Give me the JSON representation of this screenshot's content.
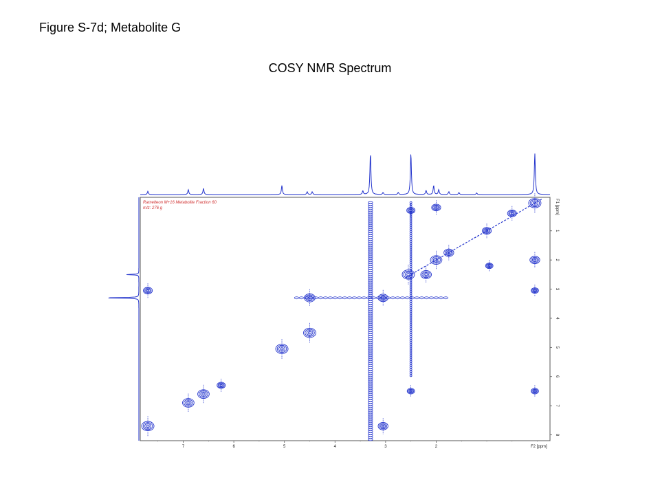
{
  "figure_label": "Figure S-7d; Metabolite G",
  "chart_data": {
    "type": "heatmap",
    "title": "COSY NMR Spectrum",
    "annotation_lines": [
      "Ramelteon M+16 Metabolite Fraction 60",
      "m/z: 276 g"
    ],
    "x_axis": {
      "label": "F2 [ppm]",
      "range": [
        7.85,
        -0.25
      ],
      "ticks": [
        7,
        6,
        5,
        4,
        3,
        2
      ]
    },
    "y_axis": {
      "label": "F1 [ppm]",
      "range": [
        -0.15,
        8.2
      ],
      "ticks": [
        1,
        2,
        3,
        4,
        5,
        6,
        7,
        8
      ]
    },
    "contour_color": "#2233cc",
    "top_projection_peaks": [
      {
        "ppm": 7.7,
        "height": 0.08
      },
      {
        "ppm": 6.9,
        "height": 0.12
      },
      {
        "ppm": 6.6,
        "height": 0.15
      },
      {
        "ppm": 5.05,
        "height": 0.22
      },
      {
        "ppm": 4.55,
        "height": 0.07
      },
      {
        "ppm": 4.45,
        "height": 0.07
      },
      {
        "ppm": 3.45,
        "height": 0.09
      },
      {
        "ppm": 3.3,
        "height": 1.0
      },
      {
        "ppm": 3.05,
        "height": 0.05
      },
      {
        "ppm": 2.75,
        "height": 0.05
      },
      {
        "ppm": 2.5,
        "height": 1.0
      },
      {
        "ppm": 2.2,
        "height": 0.1
      },
      {
        "ppm": 2.05,
        "height": 0.22
      },
      {
        "ppm": 1.95,
        "height": 0.12
      },
      {
        "ppm": 1.75,
        "height": 0.07
      },
      {
        "ppm": 1.55,
        "height": 0.05
      },
      {
        "ppm": 1.2,
        "height": 0.04
      },
      {
        "ppm": 0.05,
        "height": 1.0
      }
    ],
    "left_projection_peaks": [
      {
        "ppm": 2.5,
        "height": 0.35
      },
      {
        "ppm": 3.3,
        "height": 1.0
      }
    ],
    "cross_peaks": [
      {
        "x": 7.7,
        "y": 7.7,
        "size": 1.0
      },
      {
        "x": 7.7,
        "y": 3.05,
        "size": 0.6
      },
      {
        "x": 6.9,
        "y": 6.9,
        "size": 0.9
      },
      {
        "x": 6.6,
        "y": 6.6,
        "size": 0.9
      },
      {
        "x": 6.25,
        "y": 6.3,
        "size": 0.5
      },
      {
        "x": 5.05,
        "y": 5.05,
        "size": 1.0
      },
      {
        "x": 4.5,
        "y": 4.5,
        "size": 1.0
      },
      {
        "x": 4.5,
        "y": 3.3,
        "size": 0.8
      },
      {
        "x": 3.05,
        "y": 7.7,
        "size": 0.7
      },
      {
        "x": 3.05,
        "y": 3.3,
        "size": 0.7
      },
      {
        "x": 2.55,
        "y": 2.5,
        "size": 1.0
      },
      {
        "x": 2.2,
        "y": 2.5,
        "size": 0.8
      },
      {
        "x": 2.0,
        "y": 2.0,
        "size": 0.9
      },
      {
        "x": 1.75,
        "y": 1.75,
        "size": 0.7
      },
      {
        "x": 2.0,
        "y": 0.2,
        "size": 0.6
      },
      {
        "x": 0.05,
        "y": 2.0,
        "size": 0.7
      },
      {
        "x": 0.05,
        "y": 6.5,
        "size": 0.4
      },
      {
        "x": 0.05,
        "y": 3.05,
        "size": 0.4
      },
      {
        "x": 0.05,
        "y": 0.05,
        "size": 1.0
      },
      {
        "x": 1.0,
        "y": 1.0,
        "size": 0.6
      },
      {
        "x": 0.5,
        "y": 0.4,
        "size": 0.6
      },
      {
        "x": 2.5,
        "y": 6.5,
        "size": 0.4
      },
      {
        "x": 2.5,
        "y": 0.3,
        "size": 0.5
      },
      {
        "x": 0.95,
        "y": 2.2,
        "size": 0.4
      }
    ],
    "solvent_bands": [
      {
        "orientation": "vertical",
        "ppm": 3.3,
        "from": 0.0,
        "to": 8.2,
        "width": 0.09
      },
      {
        "orientation": "vertical",
        "ppm": 2.5,
        "from": 0.0,
        "to": 6.0,
        "width": 0.04
      },
      {
        "orientation": "horizontal",
        "ppm": 3.3,
        "from": 4.8,
        "to": 1.8,
        "width": 0.07
      }
    ]
  }
}
